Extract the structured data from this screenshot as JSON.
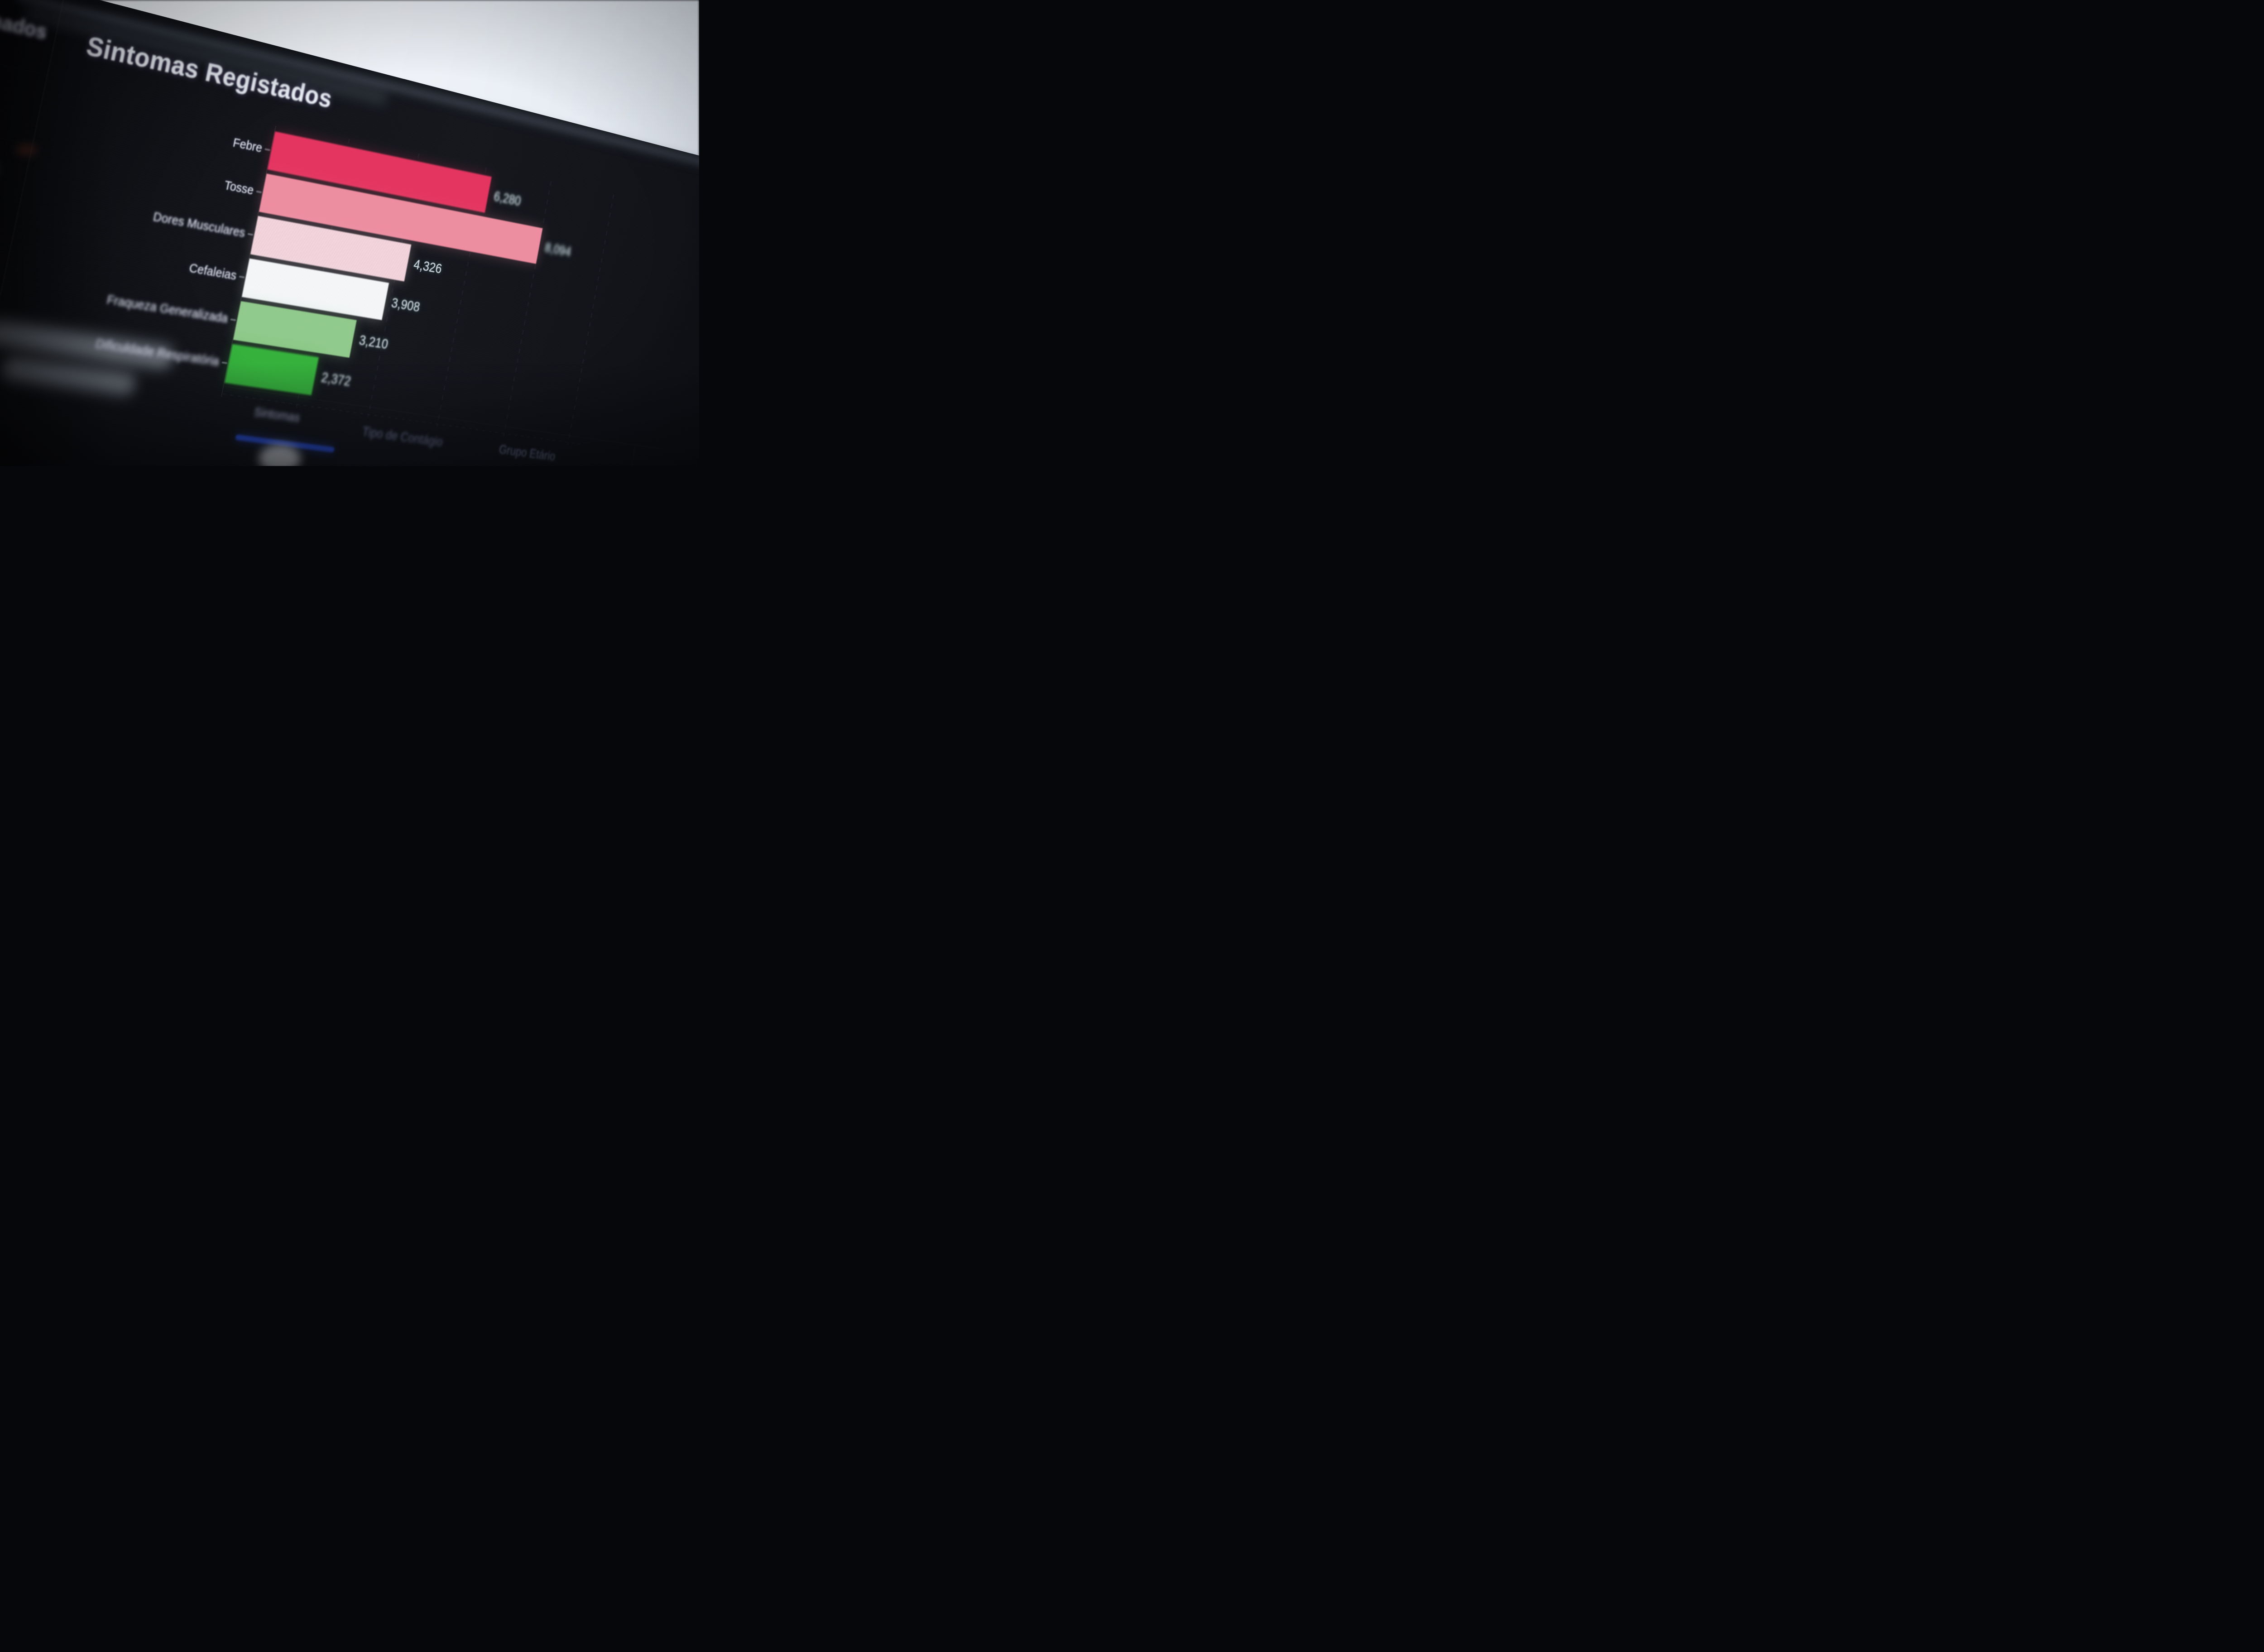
{
  "chart_data": {
    "type": "bar",
    "orientation": "horizontal",
    "title": "Sintomas Registados",
    "categories": [
      "Febre",
      "Tosse",
      "Dores Musculares",
      "Cefaleias",
      "Fraqueza Generalizada",
      "Dificuldade Respiratória"
    ],
    "values": [
      6280,
      8094,
      4326,
      3908,
      3210,
      2372
    ],
    "value_labels": [
      "6,280",
      "8,094",
      "4,326",
      "3,908",
      "3,210",
      "2,372"
    ],
    "bar_colors": [
      "#e4335f",
      "#ee8ca0",
      "#f0cdd6",
      "#f2f4f6",
      "#90c98b",
      "#35b13c"
    ],
    "xlim": [
      0,
      8500
    ],
    "grid": "vertical-dashed-faint",
    "legend": "none",
    "value_label_position": "end-of-bar"
  },
  "sidebar": {
    "heading_fragment": "mados"
  },
  "tabs": [
    {
      "label": "Sintomas",
      "active": true
    },
    {
      "label": "Tipo de Contágio",
      "active": false
    },
    {
      "label": "Grupo Etário",
      "active": false
    }
  ],
  "colors": {
    "accent_blue": "#2b51da",
    "screen_bg": "#12141a",
    "photo_background": "#eff3f8",
    "title_text": "#e9edf4",
    "label_text": "#dce3ea",
    "value_text": "#cdd8de",
    "tab_active_text": "#aab4c6",
    "tab_inactive_text": "#6d7890"
  }
}
